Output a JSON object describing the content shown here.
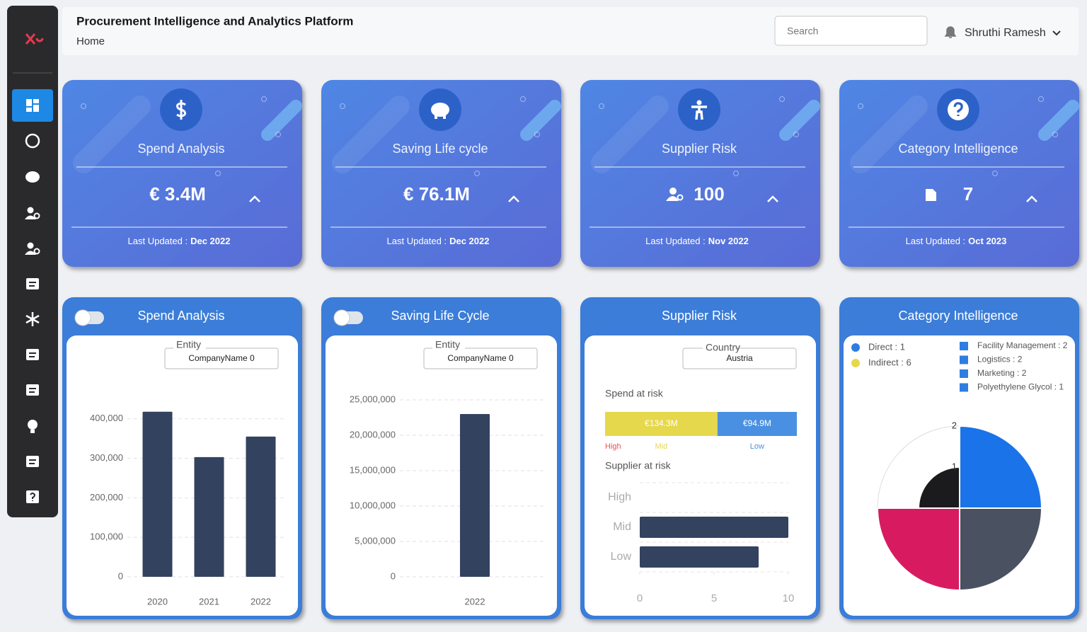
{
  "header": {
    "title": "Procurement Intelligence and Analytics Platform",
    "breadcrumb": "Home",
    "search_placeholder": "Search",
    "user": "Shruthi Ramesh"
  },
  "kpi_cards": [
    {
      "title": "Spend Analysis",
      "value": "€ 3.4M",
      "updated_label": "Last Updated :",
      "updated": "Dec 2022"
    },
    {
      "title": "Saving Life cycle",
      "value": "€ 76.1M",
      "updated_label": "Last Updated :",
      "updated": "Dec 2022"
    },
    {
      "title": "Supplier Risk",
      "value": "100",
      "updated_label": "Last Updated :",
      "updated": "Nov 2022"
    },
    {
      "title": "Category Intelligence",
      "value": "7",
      "updated_label": "Last Updated :",
      "updated": "Oct 2023"
    }
  ],
  "chart_data": [
    {
      "type": "bar",
      "title": "Spend Analysis",
      "toggle": true,
      "filter_label": "Entity",
      "filter_value": "CompanyName 0",
      "categories": [
        "2020",
        "2021",
        "2022"
      ],
      "values": [
        418000,
        303000,
        355000
      ],
      "color": "#33425f",
      "ylim": [
        0,
        430000
      ],
      "yticks": [
        0,
        {
          "value": 100000,
          "label": "100,000"
        },
        {
          "value": 200000,
          "label": "200,000"
        },
        {
          "value": 300000,
          "label": "300,000"
        },
        {
          "value": 400000,
          "label": "400,000"
        }
      ],
      "grid": true
    },
    {
      "type": "bar",
      "title": "Saving Life Cycle",
      "toggle": true,
      "filter_label": "Entity",
      "filter_value": "CompanyName 0",
      "categories": [
        "2022"
      ],
      "values": [
        23000000
      ],
      "color": "#33425f",
      "ylim": [
        0,
        26000000
      ],
      "yticks": [
        0,
        {
          "value": 5000000,
          "label": "5,000,000"
        },
        {
          "value": 10000000,
          "label": "10,000,000"
        },
        {
          "value": 15000000,
          "label": "15,000,000"
        },
        {
          "value": 20000000,
          "label": "20,000,000"
        },
        {
          "value": 25000000,
          "label": "25,000,000"
        }
      ],
      "grid": true
    },
    {
      "type": "supplier-risk",
      "title": "Supplier Risk",
      "toggle": false,
      "filter_label": "Country",
      "filter_value": "Austria",
      "spend_title": "Spend at risk",
      "spend_segments": [
        {
          "name": "High",
          "value": 0,
          "value_label": "0",
          "color": "#e8505b"
        },
        {
          "name": "Mid",
          "value": 134.3,
          "value_label": "€134.3M",
          "color": "#e6d84c"
        },
        {
          "name": "Low",
          "value": 94.9,
          "value_label": "€94.9M",
          "color": "#4a90e2"
        }
      ],
      "risk_title": "Supplier at risk",
      "categories": [
        "High",
        "Mid",
        "Low"
      ],
      "values": [
        0,
        10,
        8
      ],
      "color": "#33425f",
      "xlim": [
        0,
        10
      ],
      "xticks": [
        0,
        5,
        10
      ],
      "grid": true
    },
    {
      "type": "polar",
      "title": "Category Intelligence",
      "toggle": false,
      "groups": [
        {
          "label": "Direct : 1",
          "color": "#2f7de1"
        },
        {
          "label": "Indirect : 6",
          "color": "#e6d84c"
        }
      ],
      "legend_labels": [
        "Facility Management : 2",
        "Logistics : 2",
        "Marketing : 2",
        "Polyethylene Glycol : 1"
      ],
      "legend_color": "#2f7de1",
      "values": [
        2,
        2,
        2,
        1
      ],
      "colors": [
        "#1a73e8",
        "#4a5160",
        "#d81b60",
        "#1b1b1d"
      ],
      "rlim": [
        0,
        2
      ],
      "rticks": [
        1,
        2
      ]
    }
  ]
}
